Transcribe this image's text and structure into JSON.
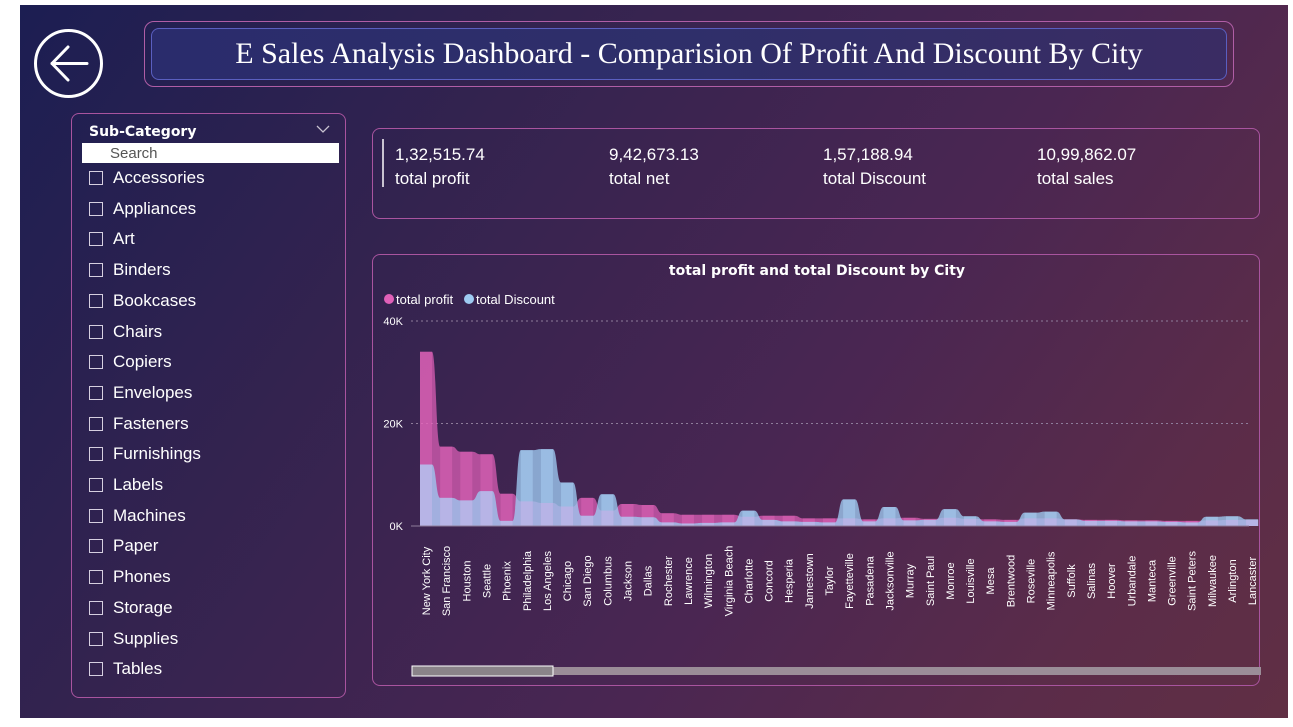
{
  "header": {
    "title": "E Sales Analysis Dashboard - Comparision Of Profit And Discount By City",
    "back_icon": "back-arrow-icon"
  },
  "slicer": {
    "header": "Sub-Category",
    "search_placeholder": "Search",
    "items": [
      "Accessories",
      "Appliances",
      "Art",
      "Binders",
      "Bookcases",
      "Chairs",
      "Copiers",
      "Envelopes",
      "Fasteners",
      "Furnishings",
      "Labels",
      "Machines",
      "Paper",
      "Phones",
      "Storage",
      "Supplies",
      "Tables"
    ]
  },
  "kpis": [
    {
      "value": "1,32,515.74",
      "label": "total profit"
    },
    {
      "value": "9,42,673.13",
      "label": "total net"
    },
    {
      "value": "1,57,188.94",
      "label": "total Discount"
    },
    {
      "value": "10,99,862.07",
      "label": "total sales"
    }
  ],
  "colors": {
    "profit": "#e060b8",
    "discount": "#9ecbf2",
    "card_border": "#a9549f",
    "text": "#ffffff"
  },
  "chart_data": {
    "type": "area",
    "title": "total profit and total Discount by City",
    "xlabel": "",
    "ylabel": "",
    "ylim": [
      0,
      40000
    ],
    "yticks": [
      "0K",
      "20K",
      "40K"
    ],
    "grid": true,
    "legend": "top-left",
    "categories": [
      "New York City",
      "San Francisco",
      "Houston",
      "Seattle",
      "Phoenix",
      "Philadelphia",
      "Los Angeles",
      "Chicago",
      "San Diego",
      "Columbus",
      "Jackson",
      "Dallas",
      "Rochester",
      "Lawrence",
      "Wilmington",
      "Virginia Beach",
      "Charlotte",
      "Concord",
      "Hesperia",
      "Jamestown",
      "Taylor",
      "Fayetteville",
      "Pasadena",
      "Jacksonville",
      "Murray",
      "Saint Paul",
      "Monroe",
      "Louisville",
      "Mesa",
      "Brentwood",
      "Roseville",
      "Minneapolis",
      "Suffolk",
      "Salinas",
      "Hoover",
      "Urbandale",
      "Manteca",
      "Greenville",
      "Saint Peters",
      "Milwaukee",
      "Arlington",
      "Lancaster"
    ],
    "series": [
      {
        "name": "total profit",
        "values": [
          34000,
          15500,
          14500,
          14000,
          6300,
          4800,
          4500,
          3800,
          5500,
          3000,
          4300,
          4100,
          2500,
          2200,
          2200,
          2200,
          1800,
          2000,
          2000,
          1500,
          1500,
          1500,
          1300,
          1500,
          1600,
          1400,
          1600,
          1400,
          1300,
          1200,
          1500,
          1500,
          1300,
          1200,
          1200,
          1100,
          1100,
          1000,
          1000,
          1100,
          1200,
          1200
        ]
      },
      {
        "name": "total Discount",
        "values": [
          12000,
          5500,
          5000,
          6800,
          1000,
          14800,
          15000,
          8500,
          2000,
          6200,
          1800,
          1700,
          700,
          500,
          600,
          700,
          3000,
          1200,
          900,
          800,
          700,
          5200,
          900,
          3700,
          1100,
          1200,
          3300,
          1900,
          900,
          800,
          2600,
          2800,
          1300,
          1000,
          1000,
          900,
          900,
          800,
          700,
          1800,
          1900,
          1300
        ]
      }
    ]
  }
}
